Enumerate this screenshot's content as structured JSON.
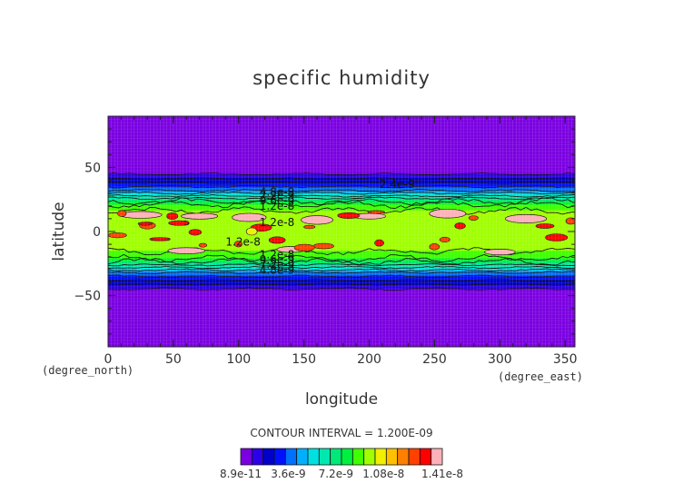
{
  "chart_data": {
    "type": "heatmap",
    "title": "specific humidity",
    "xlabel": "longitude",
    "ylabel": "latitude",
    "x_unit": "(degree_east)",
    "y_unit": "(degree_north)",
    "xlim": [
      0,
      357.5
    ],
    "ylim": [
      -90,
      90
    ],
    "x_ticks": [
      0,
      50,
      100,
      150,
      200,
      250,
      300,
      350
    ],
    "y_ticks": [
      -50,
      0,
      50
    ],
    "contour_interval_text": "CONTOUR INTERVAL = 1.200E-09",
    "colorbar": {
      "colors": [
        "#7a00e0",
        "#2c00e8",
        "#0000c8",
        "#0010ff",
        "#0070ff",
        "#00b0ff",
        "#00e0e0",
        "#00e8b0",
        "#00e878",
        "#00f040",
        "#40ff00",
        "#a0ff00",
        "#f0f000",
        "#ffc000",
        "#ff8000",
        "#ff4000",
        "#ff0000",
        "#ffb0b8"
      ],
      "tick_labels": [
        "8.9e-11",
        "3.6e-9",
        "7.2e-9",
        "1.08e-8",
        "1.41e-8"
      ]
    },
    "contour_labels": [
      {
        "text": "2.4e-9",
        "lon": 208,
        "lat": 37
      },
      {
        "text": "4.8e-9",
        "lon": 116,
        "lat": 31
      },
      {
        "text": "7.2e-9",
        "lon": 116,
        "lat": 28
      },
      {
        "text": "9.6e-9",
        "lon": 116,
        "lat": 24
      },
      {
        "text": "1.2e-8",
        "lon": 116,
        "lat": 20
      },
      {
        "text": "1.2e-8",
        "lon": 116,
        "lat": 7
      },
      {
        "text": "1.2e-8",
        "lon": 90,
        "lat": -8
      },
      {
        "text": "1.2e-8",
        "lon": 116,
        "lat": -18
      },
      {
        "text": "9.6e-9",
        "lon": 116,
        "lat": -22
      },
      {
        "text": "7.2e-9",
        "lon": 116,
        "lat": -26
      },
      {
        "text": "4.8e-9",
        "lon": 116,
        "lat": -30
      }
    ],
    "zonal_profile": [
      {
        "lat": 90,
        "value": 0.09
      },
      {
        "lat": 48,
        "value": 0.09
      },
      {
        "lat": 44,
        "value": 1.5
      },
      {
        "lat": 38,
        "value": 3.6
      },
      {
        "lat": 32,
        "value": 6.0
      },
      {
        "lat": 26,
        "value": 9.6
      },
      {
        "lat": 20,
        "value": 12.6
      },
      {
        "lat": 15,
        "value": 13.4
      },
      {
        "lat": 8,
        "value": 13.6
      },
      {
        "lat": 0,
        "value": 13.2
      },
      {
        "lat": -8,
        "value": 13.3
      },
      {
        "lat": -14,
        "value": 13.4
      },
      {
        "lat": -20,
        "value": 12.6
      },
      {
        "lat": -26,
        "value": 9.6
      },
      {
        "lat": -32,
        "value": 6.0
      },
      {
        "lat": -38,
        "value": 3.6
      },
      {
        "lat": -44,
        "value": 1.5
      },
      {
        "lat": -48,
        "value": 0.09
      },
      {
        "lat": -90,
        "value": 0.09
      }
    ],
    "value_unit_scale": "1e-9",
    "pink_patches_lonlat": [
      [
        25,
        13
      ],
      [
        70,
        12
      ],
      [
        108,
        11
      ],
      [
        160,
        9
      ],
      [
        200,
        12
      ],
      [
        260,
        14
      ],
      [
        320,
        10
      ],
      [
        60,
        -15
      ],
      [
        140,
        -14
      ],
      [
        300,
        -16
      ]
    ]
  }
}
